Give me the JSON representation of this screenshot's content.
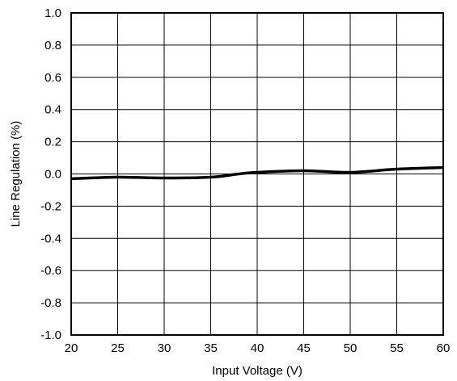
{
  "chart_data": {
    "type": "line",
    "title": "",
    "xlabel": "Input Voltage (V)",
    "ylabel": "Line Regulation (%)",
    "xlim": [
      20,
      60
    ],
    "ylim": [
      -1.0,
      1.0
    ],
    "x_ticks": [
      "20",
      "25",
      "30",
      "35",
      "40",
      "45",
      "50",
      "55",
      "60"
    ],
    "y_ticks": [
      "1.0",
      "0.8",
      "0.6",
      "0.4",
      "0.2",
      "0.0",
      "-0.2",
      "-0.4",
      "-0.6",
      "-0.8",
      "-1.0"
    ],
    "grid": true,
    "legend": "none",
    "series": [
      {
        "x": [
          20,
          25,
          30,
          35,
          38,
          40,
          45,
          50,
          55,
          60
        ],
        "y": [
          -0.03,
          -0.02,
          -0.025,
          -0.02,
          0.0,
          0.01,
          0.02,
          0.01,
          0.03,
          0.04
        ],
        "color": "#000000"
      }
    ]
  }
}
